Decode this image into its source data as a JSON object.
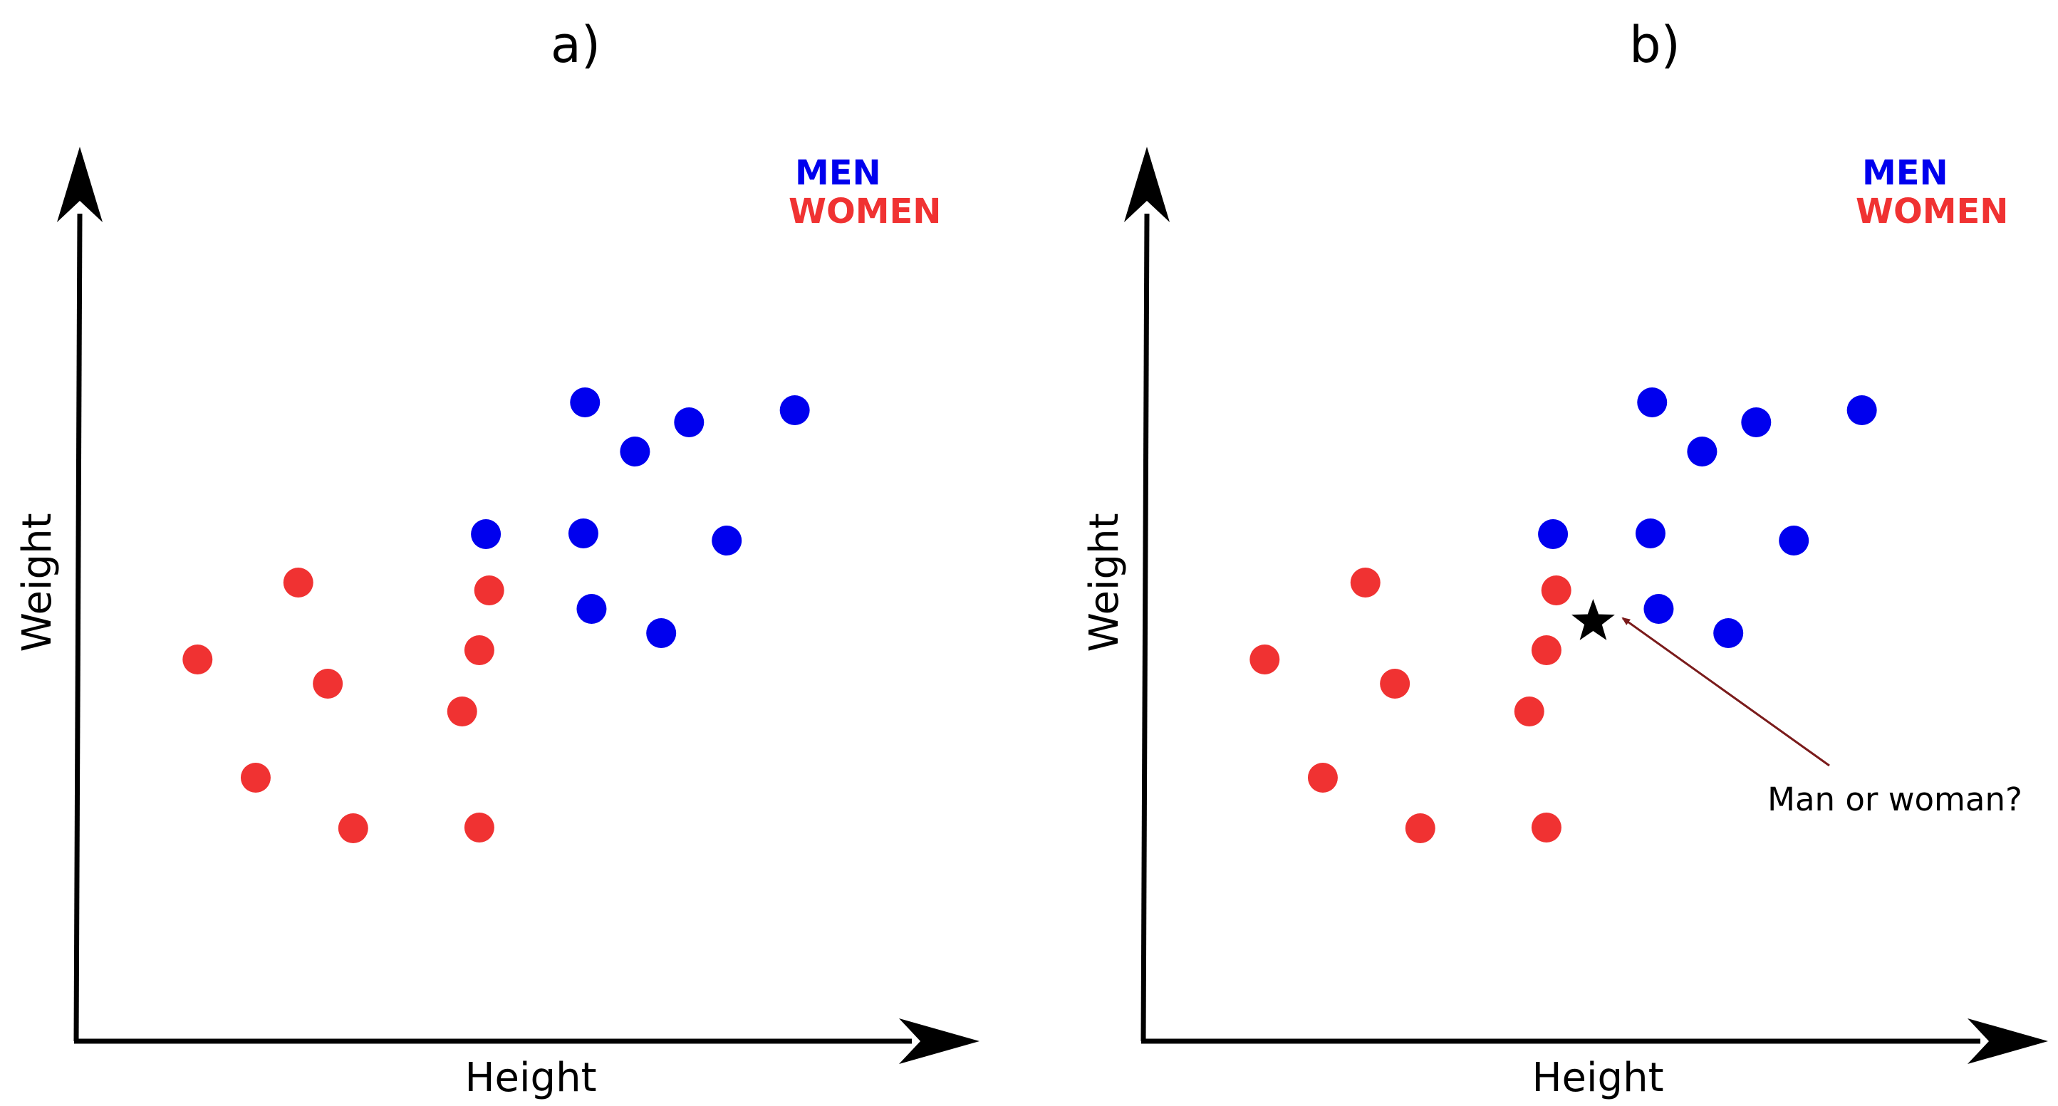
{
  "chart_data": [
    {
      "type": "scatter",
      "panel": "a)",
      "xlabel": "Height",
      "ylabel": "Weight",
      "xlim": [
        0,
        100
      ],
      "ylim": [
        0,
        100
      ],
      "ticks": false,
      "grid": false,
      "legend_position": "top-right",
      "series": [
        {
          "name": "MEN",
          "color": "#0000ee",
          "points": [
            [
              57.5,
              83.5
            ],
            [
              70.2,
              80.7
            ],
            [
              63.6,
              76.6
            ],
            [
              83.1,
              82.4
            ],
            [
              45.4,
              65.0
            ],
            [
              57.3,
              65.1
            ],
            [
              74.8,
              64.1
            ],
            [
              58.3,
              54.5
            ],
            [
              66.8,
              51.1
            ]
          ]
        },
        {
          "name": "WOMEN",
          "color": "#f03232",
          "points": [
            [
              22.5,
              58.2
            ],
            [
              45.8,
              57.1
            ],
            [
              10.2,
              47.4
            ],
            [
              44.6,
              48.7
            ],
            [
              26.1,
              44.0
            ],
            [
              42.5,
              40.1
            ],
            [
              17.3,
              30.8
            ],
            [
              29.2,
              23.7
            ],
            [
              44.6,
              23.8
            ]
          ]
        }
      ]
    },
    {
      "type": "scatter",
      "panel": "b)",
      "xlabel": "Height",
      "ylabel": "Weight",
      "xlim": [
        0,
        100
      ],
      "ylim": [
        0,
        100
      ],
      "ticks": false,
      "grid": false,
      "legend_position": "top-right",
      "series": [
        {
          "name": "MEN",
          "color": "#0000ee",
          "points": [
            [
              57.5,
              83.5
            ],
            [
              70.2,
              80.7
            ],
            [
              63.6,
              76.6
            ],
            [
              83.1,
              82.4
            ],
            [
              45.4,
              65.0
            ],
            [
              57.3,
              65.1
            ],
            [
              74.8,
              64.1
            ],
            [
              58.3,
              54.5
            ],
            [
              66.8,
              51.1
            ]
          ]
        },
        {
          "name": "WOMEN",
          "color": "#f03232",
          "points": [
            [
              22.5,
              58.2
            ],
            [
              45.8,
              57.1
            ],
            [
              10.2,
              47.4
            ],
            [
              44.6,
              48.7
            ],
            [
              26.1,
              44.0
            ],
            [
              42.5,
              40.1
            ],
            [
              17.3,
              30.8
            ],
            [
              29.2,
              23.7
            ],
            [
              44.6,
              23.8
            ]
          ]
        }
      ],
      "query_point": {
        "shape": "star",
        "color": "#000000",
        "point": [
          50.3,
          52.7
        ]
      },
      "annotation": {
        "text": "Man or woman?",
        "color": "#000000",
        "arrow_color": "#7a1a1a"
      }
    }
  ]
}
